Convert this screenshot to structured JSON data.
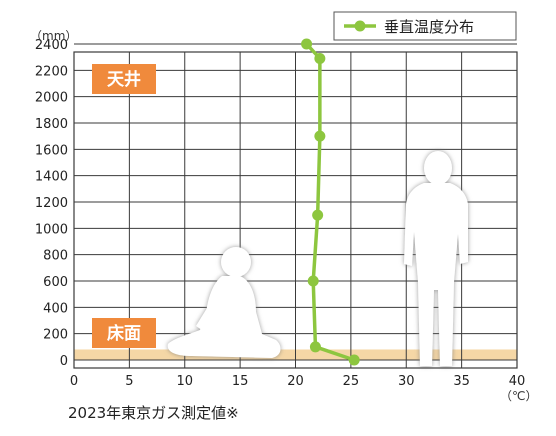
{
  "chart_data": {
    "type": "line",
    "title": "",
    "y_unit": "（mm）",
    "x_unit": "（℃）",
    "xlim": [
      0,
      40
    ],
    "ylim": [
      0,
      2400
    ],
    "x_ticks": [
      0,
      5,
      10,
      15,
      20,
      25,
      30,
      35,
      40
    ],
    "y_ticks": [
      0,
      200,
      400,
      600,
      800,
      1000,
      1200,
      1400,
      1600,
      1800,
      2000,
      2200,
      2400
    ],
    "grid": true,
    "legend_position": "top-right",
    "series": [
      {
        "name": "垂直温度分布",
        "color": "#8dc63f",
        "points": [
          {
            "x": 21.0,
            "y": 2400
          },
          {
            "x": 22.2,
            "y": 2290
          },
          {
            "x": 22.2,
            "y": 1700
          },
          {
            "x": 22.0,
            "y": 1100
          },
          {
            "x": 21.6,
            "y": 600
          },
          {
            "x": 21.8,
            "y": 100
          },
          {
            "x": 25.3,
            "y": 0
          }
        ]
      }
    ],
    "labels": {
      "ceiling": "天井",
      "floor": "床面"
    },
    "footnote": "2023年東京ガス測定値※",
    "colors": {
      "floor_band": "#f5d7a6",
      "label_bg": "#f08a3c",
      "grid": "#3a3a3a",
      "silhouette": "#ffffff"
    },
    "floor_band_range_mm": [
      0,
      80
    ]
  }
}
